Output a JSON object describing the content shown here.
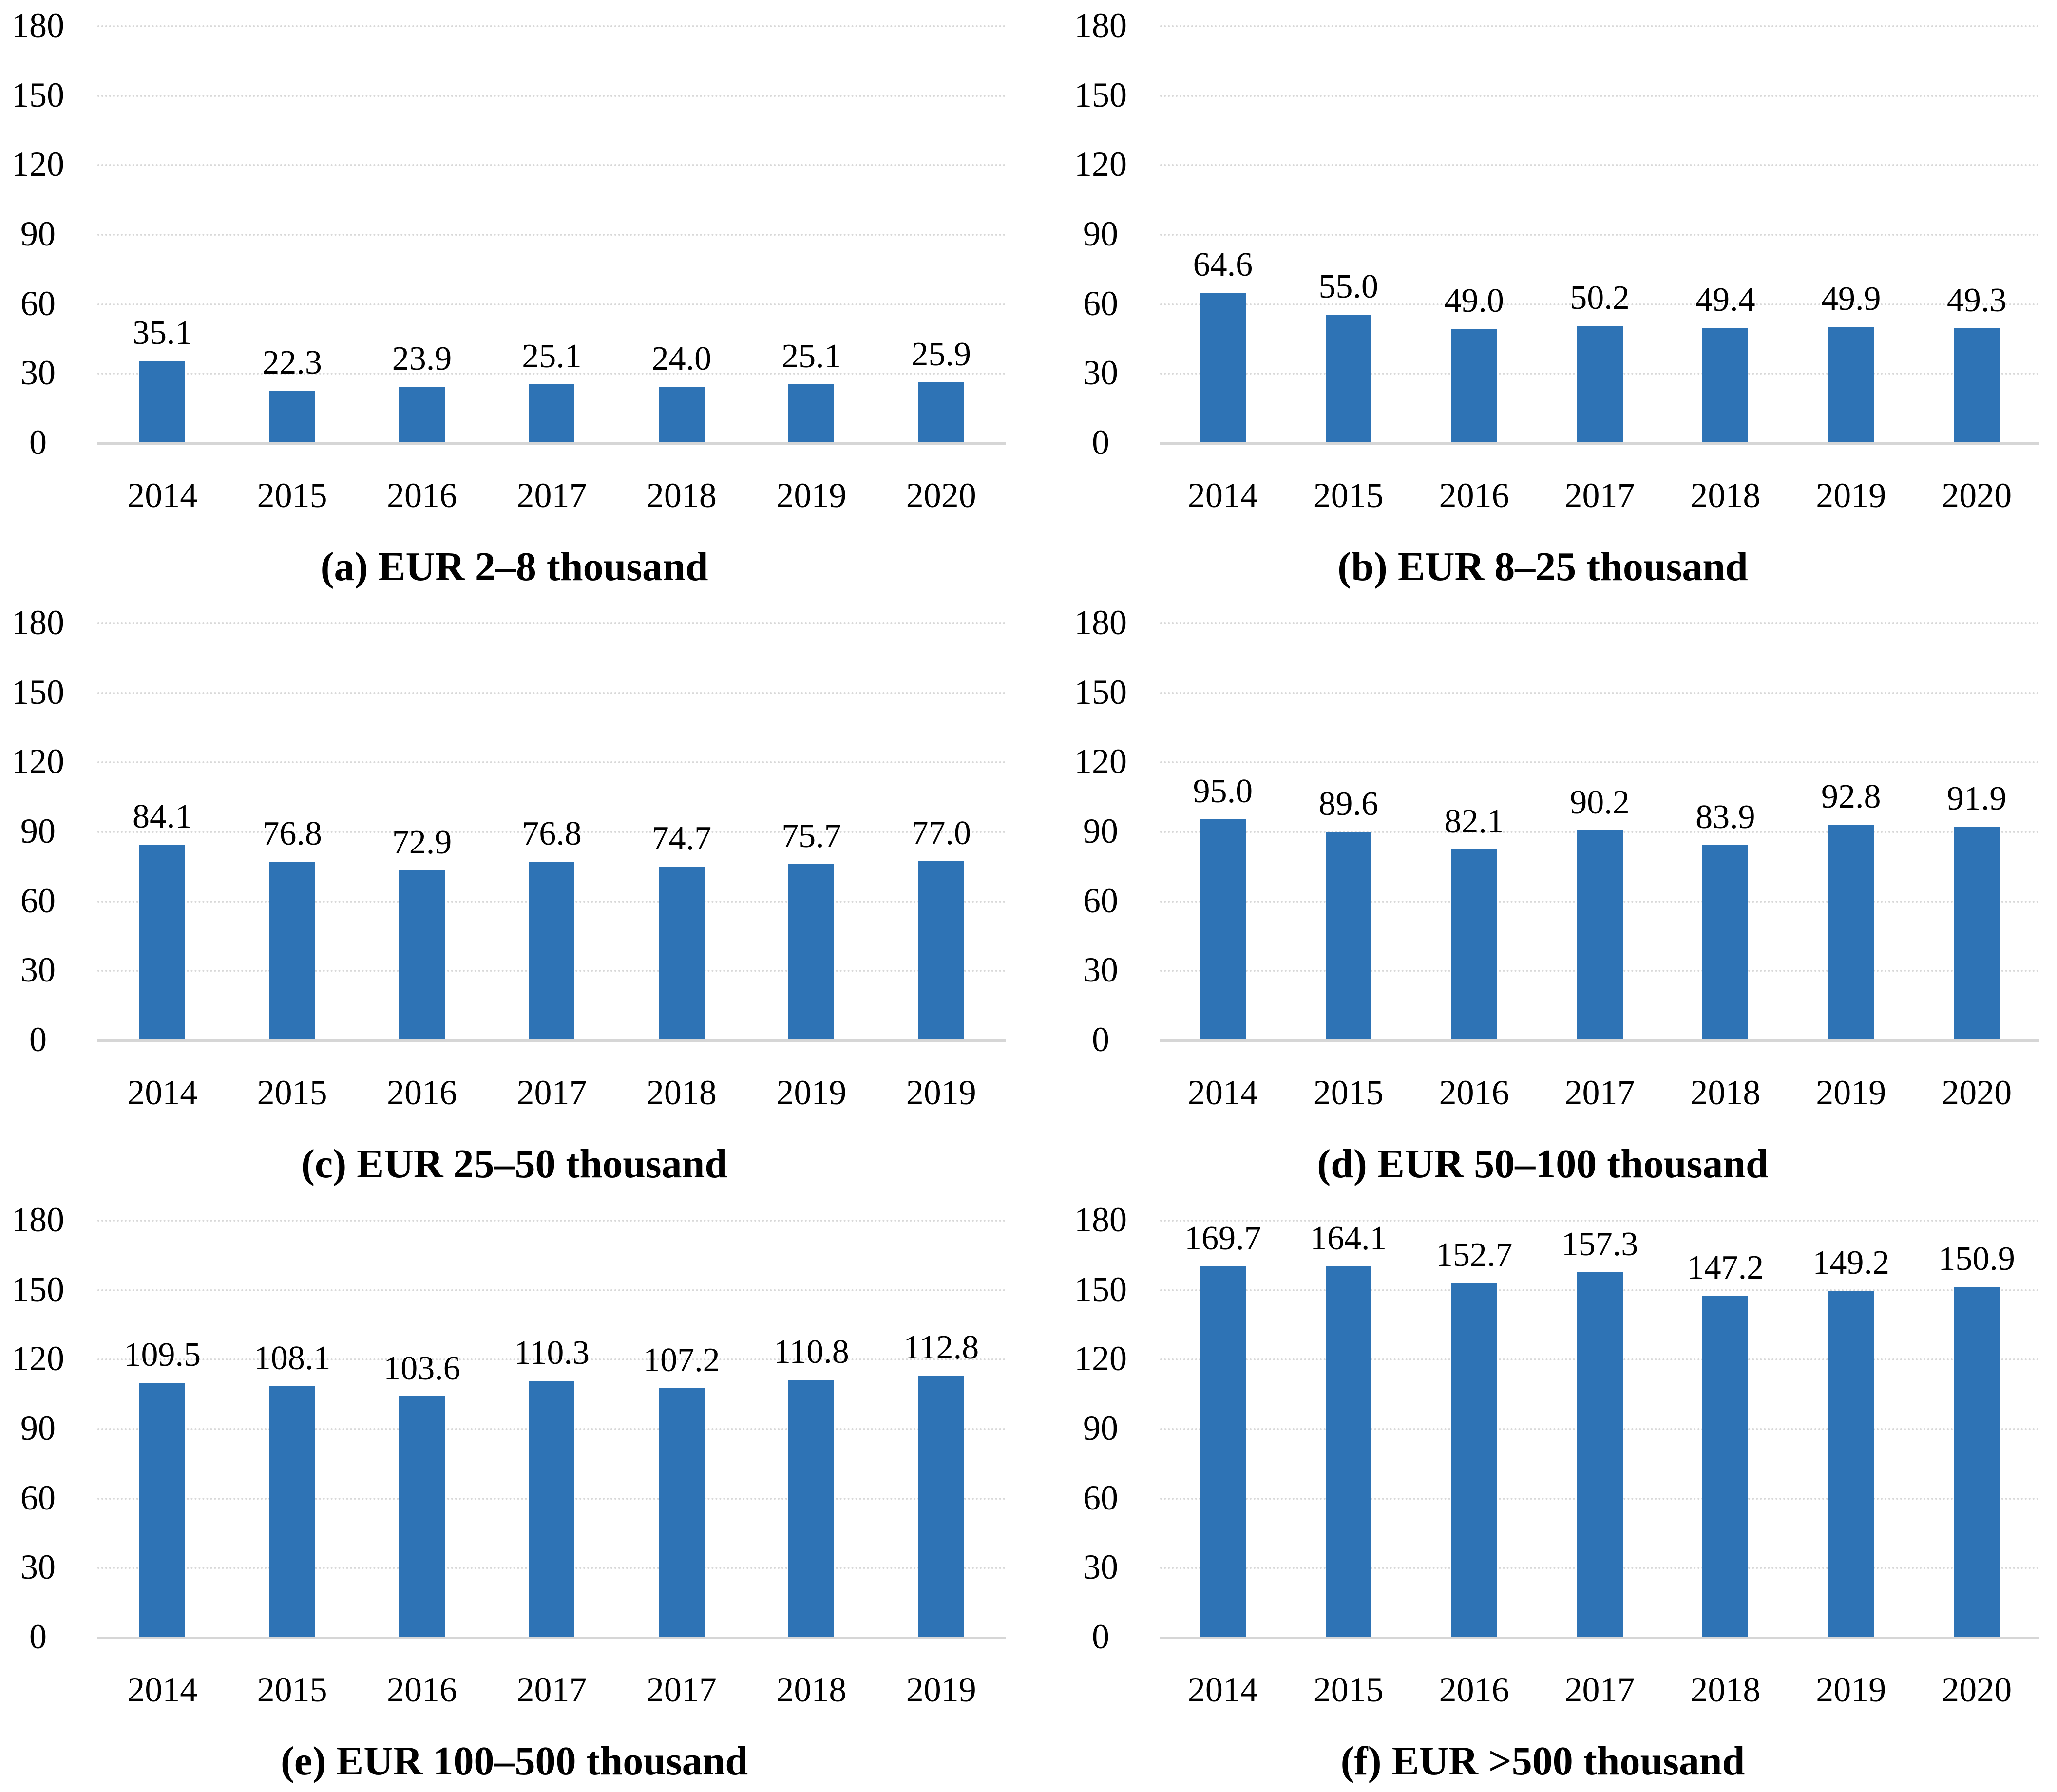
{
  "colors": {
    "bar": "#2E73B5",
    "gridline": "#D9D9D9",
    "axis_line": "#D6D6D6",
    "text": "#000000"
  },
  "chart_data": [
    {
      "id": "a",
      "type": "bar",
      "caption": "(a) EUR 2–8 thousand",
      "categories": [
        "2014",
        "2015",
        "2016",
        "2017",
        "2018",
        "2019",
        "2020"
      ],
      "values": [
        35.1,
        22.3,
        23.9,
        25.1,
        24.0,
        25.1,
        25.9
      ],
      "labels": [
        "35.1",
        "22.3",
        "23.9",
        "25.1",
        "24.0",
        "25.1",
        "25.9"
      ],
      "xlabel": "",
      "ylabel": "",
      "ylim": [
        0,
        180
      ],
      "yticks": [
        0,
        30,
        60,
        90,
        120,
        150,
        180
      ],
      "grid": true,
      "legend": false
    },
    {
      "id": "b",
      "type": "bar",
      "caption": "(b) EUR 8–25 thousand",
      "categories": [
        "2014",
        "2015",
        "2016",
        "2017",
        "2018",
        "2019",
        "2020"
      ],
      "values": [
        64.6,
        55.0,
        49.0,
        50.2,
        49.4,
        49.9,
        49.3
      ],
      "labels": [
        "64.6",
        "55.0",
        "49.0",
        "50.2",
        "49.4",
        "49.9",
        "49.3"
      ],
      "xlabel": "",
      "ylabel": "",
      "ylim": [
        0,
        180
      ],
      "yticks": [
        0,
        30,
        60,
        90,
        120,
        150,
        180
      ],
      "grid": true,
      "legend": false
    },
    {
      "id": "c",
      "type": "bar",
      "caption": "(c) EUR 25–50 thousand",
      "categories": [
        "2014",
        "2015",
        "2016",
        "2017",
        "2018",
        "2019",
        "2019"
      ],
      "values": [
        84.1,
        76.8,
        72.9,
        76.8,
        74.7,
        75.7,
        77.0
      ],
      "labels": [
        "84.1",
        "76.8",
        "72.9",
        "76.8",
        "74.7",
        "75.7",
        "77.0"
      ],
      "xlabel": "",
      "ylabel": "",
      "ylim": [
        0,
        180
      ],
      "yticks": [
        0,
        30,
        60,
        90,
        120,
        150,
        180
      ],
      "grid": true,
      "legend": false
    },
    {
      "id": "d",
      "type": "bar",
      "caption": "(d) EUR 50–100 thousand",
      "categories": [
        "2014",
        "2015",
        "2016",
        "2017",
        "2018",
        "2019",
        "2020"
      ],
      "values": [
        95.0,
        89.6,
        82.1,
        90.2,
        83.9,
        92.8,
        91.9
      ],
      "labels": [
        "95.0",
        "89.6",
        "82.1",
        "90.2",
        "83.9",
        "92.8",
        "91.9"
      ],
      "xlabel": "",
      "ylabel": "",
      "ylim": [
        0,
        180
      ],
      "yticks": [
        0,
        30,
        60,
        90,
        120,
        150,
        180
      ],
      "grid": true,
      "legend": false
    },
    {
      "id": "e",
      "type": "bar",
      "caption": "(e) EUR 100–500 thousand",
      "categories": [
        "2014",
        "2015",
        "2016",
        "2017",
        "2017",
        "2018",
        "2019"
      ],
      "values": [
        109.5,
        108.1,
        103.6,
        110.3,
        107.2,
        110.8,
        112.8
      ],
      "labels": [
        "109.5",
        "108.1",
        "103.6",
        "110.3",
        "107.2",
        "110.8",
        "112.8"
      ],
      "xlabel": "",
      "ylabel": "",
      "ylim": [
        0,
        180
      ],
      "yticks": [
        0,
        30,
        60,
        90,
        120,
        150,
        180
      ],
      "grid": true,
      "legend": false
    },
    {
      "id": "f",
      "type": "bar",
      "caption": "(f) EUR >500 thousand",
      "categories": [
        "2014",
        "2015",
        "2016",
        "2017",
        "2018",
        "2019",
        "2020"
      ],
      "values": [
        169.7,
        164.1,
        152.7,
        157.3,
        147.2,
        149.2,
        150.9
      ],
      "labels": [
        "169.7",
        "164.1",
        "152.7",
        "157.3",
        "147.2",
        "149.2",
        "150.9"
      ],
      "xlabel": "",
      "ylabel": "",
      "ylim": [
        0,
        180
      ],
      "yticks": [
        0,
        30,
        60,
        90,
        120,
        150,
        180
      ],
      "grid": true,
      "legend": false
    }
  ]
}
